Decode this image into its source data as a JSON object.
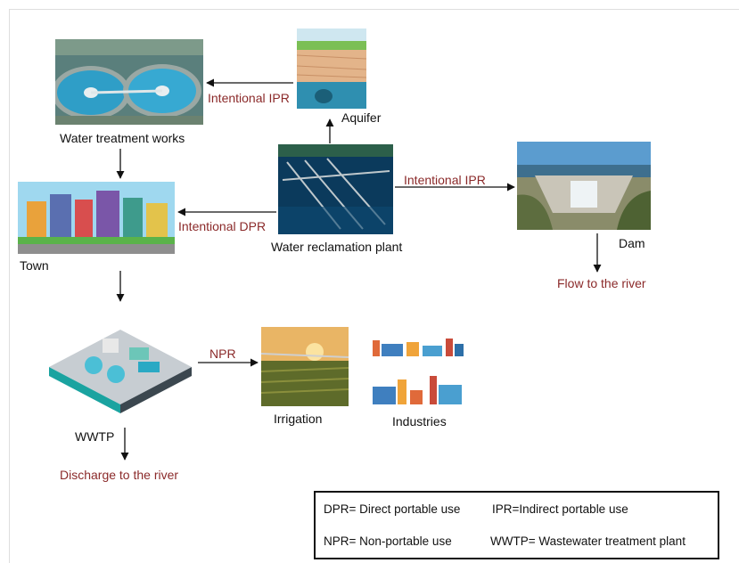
{
  "nodes": {
    "water_treatment": "Water treatment works",
    "aquifer": "Aquifer",
    "reclamation": "Water reclamation plant",
    "dam": "Dam",
    "town": "Town",
    "wwtp": "WWTP",
    "irrigation": "Irrigation",
    "industries": "Industries"
  },
  "edges": {
    "ipr_aquifer": "Intentional IPR",
    "ipr_dam": "Intentional IPR",
    "dpr_town": "Intentional DPR",
    "npr": "NPR"
  },
  "outlets": {
    "dam_river": "Flow to the river",
    "wwtp_river": "Discharge to the river"
  },
  "legend": {
    "dpr": "DPR= Direct portable use",
    "ipr": "IPR=Indirect portable use",
    "npr": "NPR= Non-portable use",
    "wwtp": "WWTP= Wastewater treatment plant"
  },
  "colors": {
    "edge_label": "#8b2a2a",
    "arrow": "#111111"
  }
}
